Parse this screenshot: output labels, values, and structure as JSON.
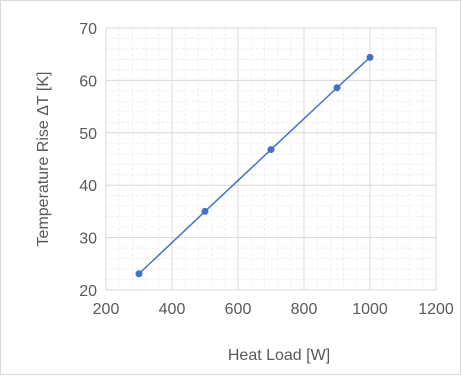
{
  "chart_data": {
    "type": "scatter",
    "title": "",
    "xlabel": "Heat Load [W]",
    "ylabel": "Temperature Rise ΔT [K]",
    "xlim": [
      200,
      1200
    ],
    "ylim": [
      20,
      70
    ],
    "xticks": [
      200,
      400,
      600,
      800,
      1000,
      1200
    ],
    "yticks": [
      20,
      30,
      40,
      50,
      60,
      70
    ],
    "grid": true,
    "minor_grid": true,
    "legend": "none",
    "series": [
      {
        "x": [
          300,
          500,
          700,
          900,
          1000
        ],
        "y": [
          23.1,
          35.0,
          46.8,
          58.6,
          64.4
        ],
        "color": "#4472c4",
        "marker": "circle",
        "line": "solid"
      }
    ]
  }
}
